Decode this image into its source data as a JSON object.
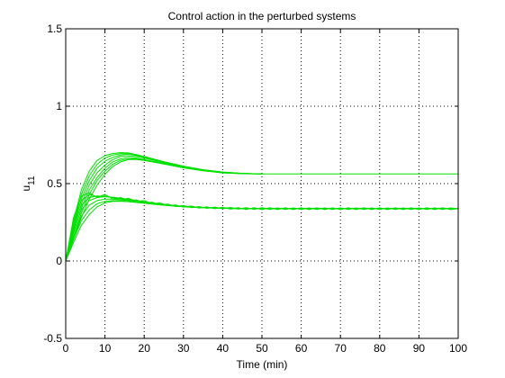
{
  "chart_data": {
    "type": "line",
    "title": "Control action in the perturbed systems",
    "xlabel": "Time (min)",
    "ylabel": "u",
    "ylabel_subscript": "11",
    "xlim": [
      0,
      100
    ],
    "ylim": [
      -0.5,
      1.5
    ],
    "xticks": [
      0,
      10,
      20,
      30,
      40,
      50,
      60,
      70,
      80,
      90,
      100
    ],
    "yticks": [
      -0.5,
      0,
      0.5,
      1,
      1.5
    ],
    "xtick_labels": [
      "0",
      "10",
      "20",
      "30",
      "40",
      "50",
      "60",
      "70",
      "80",
      "90",
      "100"
    ],
    "ytick_labels": [
      "-0.5",
      "0",
      "0.5",
      "1",
      "1.5"
    ],
    "grid": true,
    "line_color": "#00e000",
    "series": [
      {
        "x": [
          0,
          2,
          4,
          6,
          8,
          10,
          12,
          14,
          16,
          18,
          20,
          25,
          30,
          35,
          40,
          45,
          50
        ],
        "y": [
          0,
          0.18,
          0.34,
          0.46,
          0.54,
          0.6,
          0.64,
          0.66,
          0.67,
          0.665,
          0.655,
          0.63,
          0.605,
          0.585,
          0.57,
          0.565,
          0.562
        ]
      },
      {
        "x": [
          0,
          2,
          4,
          6,
          8,
          10,
          12,
          14,
          16,
          18,
          20,
          25,
          30,
          35,
          40,
          45,
          50
        ],
        "y": [
          0,
          0.2,
          0.37,
          0.49,
          0.57,
          0.62,
          0.655,
          0.675,
          0.68,
          0.675,
          0.665,
          0.635,
          0.608,
          0.587,
          0.572,
          0.565,
          0.562
        ]
      },
      {
        "x": [
          0,
          2,
          4,
          6,
          8,
          10,
          12,
          14,
          16,
          18,
          20,
          25,
          30,
          35,
          40,
          45,
          50
        ],
        "y": [
          0,
          0.22,
          0.4,
          0.52,
          0.6,
          0.645,
          0.67,
          0.685,
          0.69,
          0.682,
          0.67,
          0.638,
          0.61,
          0.588,
          0.573,
          0.565,
          0.562
        ]
      },
      {
        "x": [
          0,
          2,
          4,
          6,
          8,
          10,
          12,
          14,
          16,
          18,
          20,
          25,
          30,
          35,
          40,
          45,
          50
        ],
        "y": [
          0,
          0.24,
          0.43,
          0.55,
          0.625,
          0.665,
          0.685,
          0.693,
          0.693,
          0.685,
          0.672,
          0.64,
          0.612,
          0.589,
          0.574,
          0.566,
          0.562
        ]
      },
      {
        "x": [
          0,
          2,
          4,
          6,
          8,
          10,
          12,
          14,
          16,
          18,
          20,
          25,
          30,
          35,
          40,
          45,
          50
        ],
        "y": [
          0,
          0.26,
          0.46,
          0.58,
          0.65,
          0.68,
          0.695,
          0.7,
          0.698,
          0.688,
          0.675,
          0.642,
          0.613,
          0.59,
          0.575,
          0.566,
          0.562
        ]
      },
      {
        "x": [
          0,
          2,
          4,
          6,
          8,
          10,
          12,
          14,
          16,
          18,
          20,
          25,
          30,
          35,
          40,
          45,
          50
        ],
        "y": [
          0,
          0.16,
          0.31,
          0.43,
          0.52,
          0.58,
          0.625,
          0.65,
          0.66,
          0.66,
          0.652,
          0.628,
          0.603,
          0.584,
          0.57,
          0.564,
          0.562
        ]
      },
      {
        "x": [
          0,
          2,
          4,
          6,
          8,
          10,
          12,
          14,
          16,
          18,
          20,
          25,
          30,
          35,
          40,
          45,
          50
        ],
        "y": [
          0,
          0.14,
          0.28,
          0.4,
          0.49,
          0.56,
          0.61,
          0.64,
          0.655,
          0.656,
          0.65,
          0.626,
          0.602,
          0.583,
          0.569,
          0.564,
          0.562
        ]
      },
      {
        "x": [
          50,
          60,
          70,
          80,
          90,
          100
        ],
        "y": [
          0.562,
          0.562,
          0.562,
          0.562,
          0.562,
          0.562
        ]
      },
      {
        "x": [
          0,
          2,
          4,
          6,
          8,
          10,
          12,
          14,
          16,
          18,
          20,
          22,
          24,
          26,
          28,
          30,
          32,
          34,
          36,
          38,
          40,
          42,
          44,
          46,
          48,
          50,
          55,
          60,
          65,
          70,
          75,
          80,
          85,
          90,
          95,
          100
        ],
        "y": [
          0,
          0.16,
          0.29,
          0.36,
          0.39,
          0.4,
          0.4,
          0.395,
          0.39,
          0.385,
          0.378,
          0.372,
          0.366,
          0.36,
          0.356,
          0.352,
          0.349,
          0.347,
          0.345,
          0.343,
          0.342,
          0.341,
          0.34,
          0.339,
          0.339,
          0.338,
          0.338,
          0.338,
          0.338,
          0.338,
          0.338,
          0.338,
          0.338,
          0.338,
          0.338,
          0.338
        ]
      },
      {
        "x": [
          0,
          2,
          4,
          6,
          8,
          10,
          12,
          14,
          16,
          18,
          20,
          22,
          24,
          26,
          28,
          30,
          32,
          34,
          36,
          38,
          40,
          42,
          44,
          46,
          48,
          50,
          55,
          60,
          65,
          70,
          75,
          80,
          85,
          90,
          95,
          100
        ],
        "y": [
          0,
          0.19,
          0.33,
          0.39,
          0.41,
          0.415,
          0.412,
          0.405,
          0.398,
          0.39,
          0.382,
          0.375,
          0.368,
          0.362,
          0.357,
          0.353,
          0.35,
          0.347,
          0.345,
          0.343,
          0.342,
          0.341,
          0.34,
          0.339,
          0.339,
          0.338,
          0.338,
          0.338,
          0.338,
          0.338,
          0.338,
          0.338,
          0.338,
          0.338,
          0.338,
          0.338
        ]
      },
      {
        "x": [
          0,
          2,
          4,
          6,
          8,
          10,
          12,
          14,
          16,
          18,
          20,
          22,
          24,
          26,
          28,
          30,
          32,
          34,
          36,
          38,
          40,
          42,
          44,
          46,
          48,
          50,
          55,
          60,
          65,
          70,
          75,
          80,
          85,
          90,
          95,
          100
        ],
        "y": [
          0,
          0.22,
          0.36,
          0.41,
          0.42,
          0.418,
          0.41,
          0.402,
          0.395,
          0.388,
          0.38,
          0.373,
          0.366,
          0.361,
          0.356,
          0.352,
          0.349,
          0.346,
          0.344,
          0.343,
          0.341,
          0.34,
          0.339,
          0.339,
          0.338,
          0.338,
          0.338,
          0.338,
          0.338,
          0.338,
          0.338,
          0.338,
          0.338,
          0.338,
          0.338,
          0.338
        ]
      },
      {
        "x": [
          0,
          2,
          4,
          6,
          8,
          10,
          12,
          14,
          16,
          18,
          20,
          22,
          24,
          26,
          28,
          30,
          32,
          34,
          36,
          38,
          40,
          42,
          44,
          46,
          48,
          50,
          52,
          54,
          56,
          58,
          60,
          62,
          64,
          66,
          68,
          70,
          72,
          74,
          76,
          78,
          80,
          82,
          84,
          86,
          88,
          90,
          92,
          94,
          96,
          98,
          100
        ],
        "y": [
          0,
          0.25,
          0.39,
          0.43,
          0.415,
          0.42,
          0.41,
          0.395,
          0.405,
          0.385,
          0.39,
          0.37,
          0.375,
          0.358,
          0.362,
          0.348,
          0.355,
          0.342,
          0.35,
          0.338,
          0.347,
          0.335,
          0.345,
          0.333,
          0.344,
          0.332,
          0.344,
          0.332,
          0.344,
          0.332,
          0.344,
          0.332,
          0.344,
          0.332,
          0.344,
          0.332,
          0.344,
          0.332,
          0.344,
          0.332,
          0.344,
          0.332,
          0.344,
          0.332,
          0.344,
          0.332,
          0.344,
          0.332,
          0.344,
          0.332,
          0.338
        ]
      },
      {
        "x": [
          0,
          2,
          4,
          6,
          8,
          10,
          12,
          14,
          16,
          18,
          20,
          22,
          24,
          26,
          28,
          30,
          32,
          34,
          36,
          38,
          40,
          42,
          44,
          46,
          48,
          50,
          52,
          54,
          56,
          58,
          60,
          62,
          64,
          66,
          68,
          70,
          72,
          74,
          76,
          78,
          80,
          82,
          84,
          86,
          88,
          90,
          92,
          94,
          96,
          98,
          100
        ],
        "y": [
          0,
          0.28,
          0.42,
          0.44,
          0.41,
          0.43,
          0.4,
          0.41,
          0.39,
          0.395,
          0.375,
          0.38,
          0.362,
          0.368,
          0.352,
          0.358,
          0.345,
          0.352,
          0.34,
          0.348,
          0.337,
          0.346,
          0.335,
          0.345,
          0.334,
          0.344,
          0.333,
          0.343,
          0.333,
          0.343,
          0.333,
          0.343,
          0.333,
          0.343,
          0.333,
          0.343,
          0.333,
          0.343,
          0.333,
          0.343,
          0.333,
          0.343,
          0.333,
          0.343,
          0.333,
          0.343,
          0.333,
          0.343,
          0.333,
          0.343,
          0.338
        ]
      },
      {
        "x": [
          0,
          2,
          4,
          6,
          8,
          10,
          12,
          14,
          16,
          18,
          20,
          22,
          24,
          26,
          28,
          30,
          32,
          34,
          36,
          38,
          40,
          42,
          44,
          46,
          48,
          50,
          55,
          60,
          65,
          70,
          75,
          80,
          85,
          90,
          95,
          100
        ],
        "y": [
          0,
          0.14,
          0.26,
          0.33,
          0.37,
          0.385,
          0.39,
          0.388,
          0.384,
          0.379,
          0.374,
          0.369,
          0.364,
          0.359,
          0.355,
          0.351,
          0.348,
          0.346,
          0.344,
          0.342,
          0.341,
          0.34,
          0.339,
          0.339,
          0.338,
          0.338,
          0.338,
          0.338,
          0.338,
          0.338,
          0.338,
          0.338,
          0.338,
          0.338,
          0.338,
          0.338
        ]
      },
      {
        "x": [
          0,
          2,
          4,
          6,
          8,
          10,
          12,
          14,
          16,
          18,
          20,
          22,
          24,
          26,
          28,
          30,
          32,
          34,
          36,
          38,
          40,
          42,
          44,
          46,
          48,
          50,
          55,
          60,
          65,
          70,
          75,
          80,
          85,
          90,
          95,
          100
        ],
        "y": [
          0,
          0.12,
          0.23,
          0.3,
          0.35,
          0.375,
          0.385,
          0.386,
          0.383,
          0.378,
          0.373,
          0.368,
          0.363,
          0.358,
          0.354,
          0.35,
          0.347,
          0.345,
          0.343,
          0.342,
          0.341,
          0.34,
          0.339,
          0.338,
          0.338,
          0.338,
          0.338,
          0.338,
          0.338,
          0.338,
          0.338,
          0.338,
          0.338,
          0.338,
          0.338,
          0.338
        ]
      }
    ]
  }
}
